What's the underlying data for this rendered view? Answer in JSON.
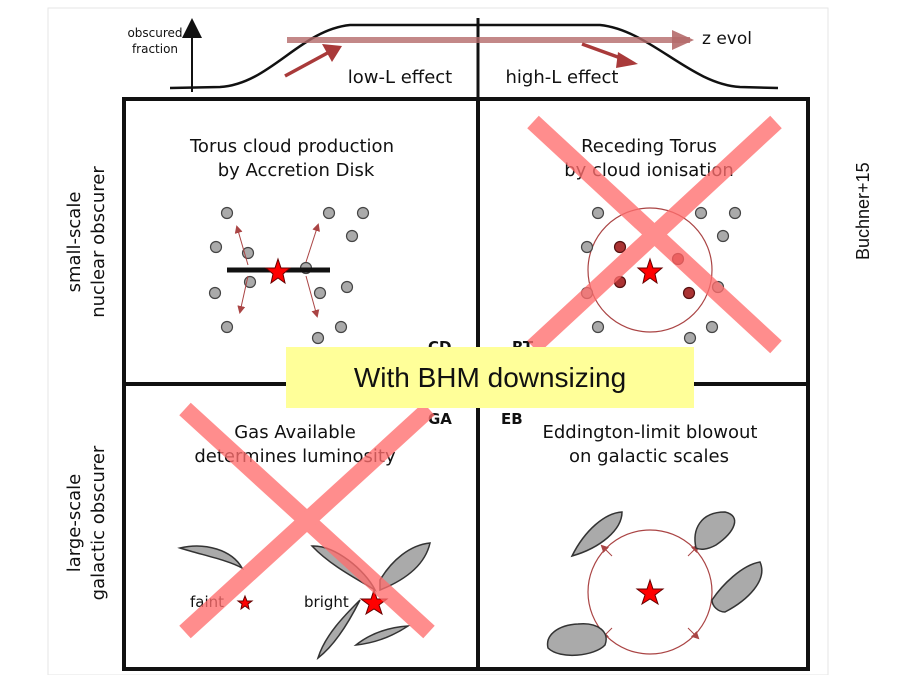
{
  "top_axis": {
    "ylabel_line1": "obscured",
    "ylabel_line2": "fraction",
    "arrow_label": "z evol",
    "left_label": "low-L effect",
    "right_label": "high-L effect"
  },
  "row_labels": {
    "top_line1": "small-scale",
    "top_line2": "nuclear obscurer",
    "bottom_line1": "large-scale",
    "bottom_line2": "galactic obscurer"
  },
  "panels": {
    "cd": {
      "tag": "CD",
      "title_line1": "Torus cloud production",
      "title_line2": "by Accretion Disk"
    },
    "rt": {
      "tag": "RT",
      "title_line1": "Receding Torus",
      "title_line2": "by cloud ionisation"
    },
    "ga": {
      "tag": "GA",
      "title_line1": "Gas Available",
      "title_line2": "determines luminosity",
      "faint_label": "faint",
      "bright_label": "bright"
    },
    "eb": {
      "tag": "EB",
      "title_line1": "Eddington-limit blowout",
      "title_line2": "on galactic scales"
    }
  },
  "banner": {
    "text": "With BHM downsizing"
  },
  "citation": {
    "text": "Buchner+15"
  },
  "colors": {
    "cross": "#ff7b7b",
    "star": "#ff0000",
    "banner_bg": "#ffff99",
    "arrow": "#b54747"
  }
}
